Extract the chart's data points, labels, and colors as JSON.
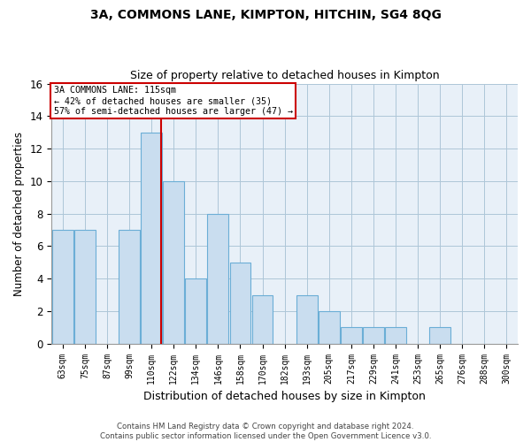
{
  "title1": "3A, COMMONS LANE, KIMPTON, HITCHIN, SG4 8QG",
  "title2": "Size of property relative to detached houses in Kimpton",
  "xlabel": "Distribution of detached houses by size in Kimpton",
  "ylabel": "Number of detached properties",
  "bin_labels": [
    "63sqm",
    "75sqm",
    "87sqm",
    "99sqm",
    "110sqm",
    "122sqm",
    "134sqm",
    "146sqm",
    "158sqm",
    "170sqm",
    "182sqm",
    "193sqm",
    "205sqm",
    "217sqm",
    "229sqm",
    "241sqm",
    "253sqm",
    "265sqm",
    "276sqm",
    "288sqm",
    "300sqm"
  ],
  "counts": [
    7,
    7,
    0,
    7,
    13,
    10,
    4,
    8,
    5,
    3,
    0,
    3,
    2,
    1,
    1,
    1,
    0,
    1,
    0,
    0,
    0
  ],
  "bar_color": "#c9ddef",
  "bar_edge_color": "#6baed6",
  "ref_bar_index": 4,
  "ref_line_color": "#cc0000",
  "annotation_text": "3A COMMONS LANE: 115sqm\n← 42% of detached houses are smaller (35)\n57% of semi-detached houses are larger (47) →",
  "annotation_box_color": "#cc0000",
  "ylim": [
    0,
    16
  ],
  "yticks": [
    0,
    2,
    4,
    6,
    8,
    10,
    12,
    14,
    16
  ],
  "footer1": "Contains HM Land Registry data © Crown copyright and database right 2024.",
  "footer2": "Contains public sector information licensed under the Open Government Licence v3.0.",
  "bg_color": "#ffffff",
  "plot_bg_color": "#e8f0f8",
  "grid_color": "#aec6d8",
  "tick_label_fontsize": 7,
  "ylabel_fontsize": 8.5,
  "xlabel_fontsize": 9,
  "title1_fontsize": 10,
  "title2_fontsize": 9
}
